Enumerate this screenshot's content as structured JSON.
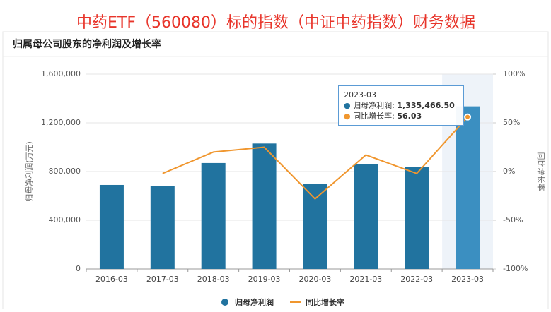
{
  "page_title": "中药ETF（560080）标的指数（中证中药指数）财务数据",
  "chart_data": {
    "type": "bar_line",
    "title": "归属母公司股东的净利润及增长率",
    "y_label": "归母净利润(万元)",
    "y2_label": "同比增长率",
    "categories": [
      "2016-03",
      "2017-03",
      "2018-03",
      "2019-03",
      "2020-03",
      "2021-03",
      "2022-03",
      "2023-03"
    ],
    "series": [
      {
        "name": "归母净利润",
        "type": "bar",
        "color": "#21739f",
        "values": [
          690000,
          680000,
          870000,
          1030000,
          700000,
          860000,
          840000,
          1335466.5
        ],
        "value_labels": [
          null,
          null,
          null,
          null,
          null,
          null,
          null,
          "1,335,466.50"
        ]
      },
      {
        "name": "同比增长率",
        "type": "line",
        "axis": "y2",
        "color": "#f0962e",
        "values": [
          null,
          -2,
          20,
          25,
          -28,
          17,
          -2,
          56.03
        ]
      }
    ],
    "ylim": [
      0,
      1600000
    ],
    "yticks": [
      0,
      {
        "value": 400000,
        "label": "400,000"
      },
      {
        "value": 800000,
        "label": "800,000"
      },
      {
        "value": 1200000,
        "label": "1,200,000"
      },
      {
        "value": 1600000,
        "label": "1,600,000"
      }
    ],
    "y2lim": [
      -100,
      100
    ],
    "y2ticks": [
      {
        "value": -100,
        "label": "-100%"
      },
      {
        "value": -50,
        "label": "-50%"
      },
      {
        "value": 0,
        "label": "0%"
      },
      {
        "value": 50,
        "label": "50%"
      },
      {
        "value": 100,
        "label": "100%"
      }
    ],
    "grid": true
  }
}
